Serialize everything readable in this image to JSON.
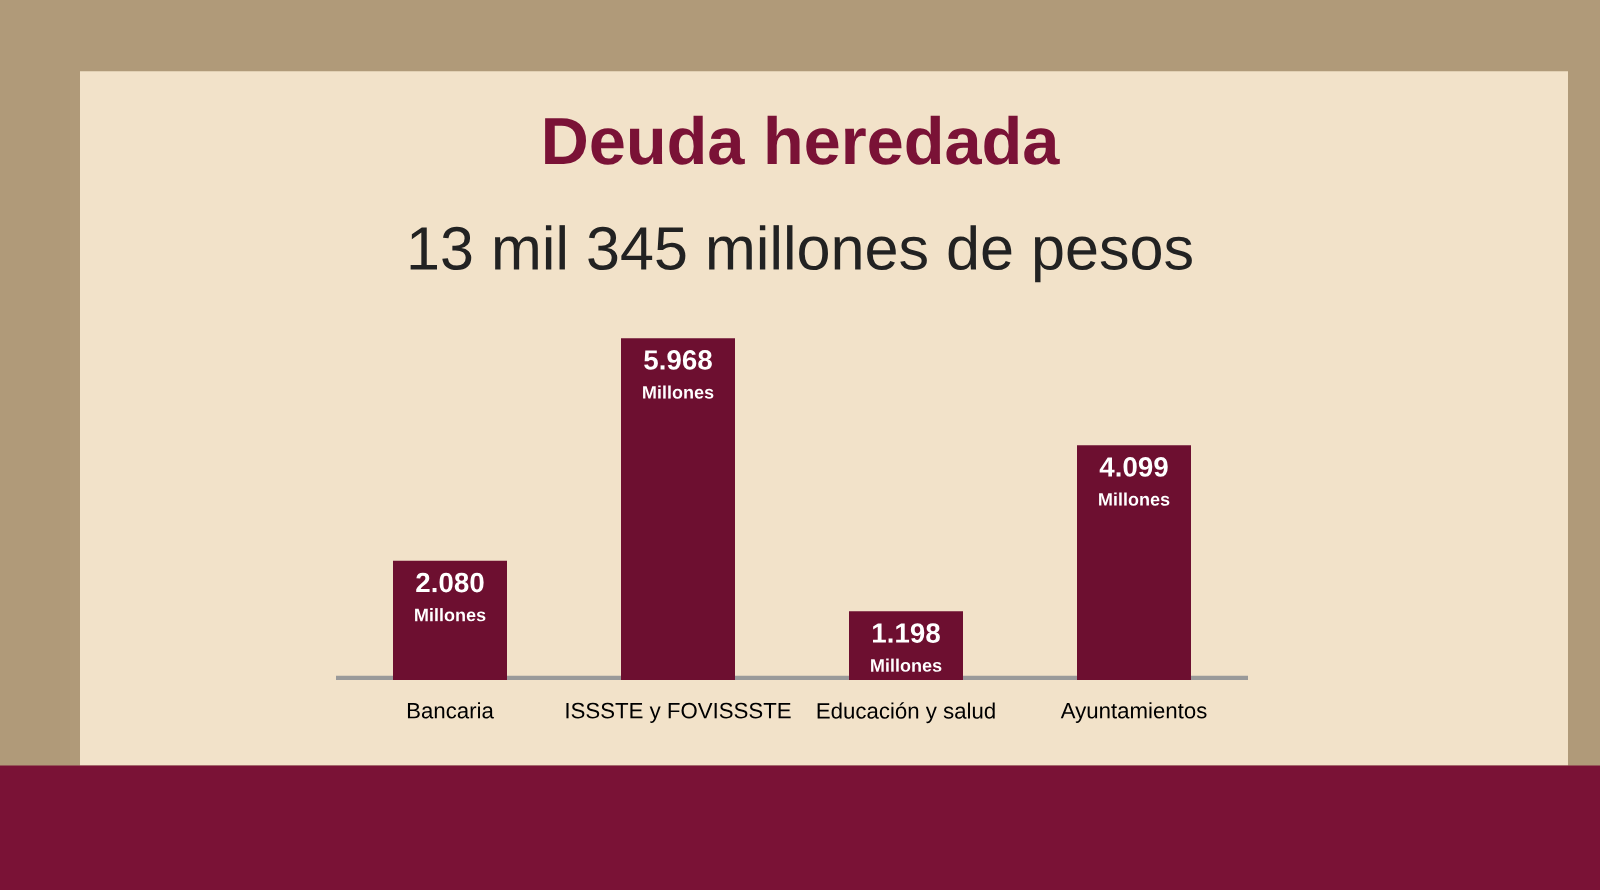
{
  "chart_data": {
    "type": "bar",
    "title": "Deuda heredada",
    "subtitle": "13 mil 345 millones de pesos",
    "categories": [
      "Bancaria",
      "ISSSTE y FOVISSSTE",
      "Educación y salud",
      "Ayuntamientos"
    ],
    "values": [
      2080,
      5968,
      1198,
      4099
    ],
    "value_labels": [
      "2.080\nMillones",
      "5.968\nMillones",
      "1.198\nMillones",
      "4.099\nMillones"
    ],
    "color": "#6d0f30",
    "ylim": [
      0,
      6000
    ],
    "tick_labels": "x",
    "grid": false,
    "legend": false
  }
}
